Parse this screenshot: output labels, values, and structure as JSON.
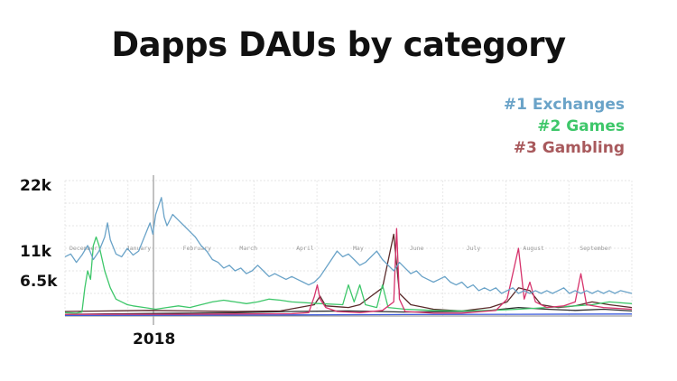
{
  "chart_data": {
    "type": "line",
    "title": "Dapps DAUs by category",
    "legend_position": "top-right",
    "grid": true,
    "y_tick_labels": [
      "22k",
      "11k",
      "6.5k"
    ],
    "x_marker_label": "2018",
    "month_labels": [
      "December",
      "January",
      "February",
      "March",
      "April",
      "May",
      "June",
      "July",
      "August",
      "September"
    ],
    "ylim": [
      0,
      24000
    ],
    "series": [
      {
        "name": "#1 Exchanges",
        "color": "#6aa3c8",
        "points": [
          [
            0.0,
            10500
          ],
          [
            0.01,
            11000
          ],
          [
            0.02,
            9500
          ],
          [
            0.03,
            10800
          ],
          [
            0.04,
            12500
          ],
          [
            0.05,
            10000
          ],
          [
            0.06,
            11500
          ],
          [
            0.07,
            14000
          ],
          [
            0.075,
            16500
          ],
          [
            0.08,
            13500
          ],
          [
            0.09,
            11000
          ],
          [
            0.1,
            10500
          ],
          [
            0.11,
            12000
          ],
          [
            0.12,
            10800
          ],
          [
            0.13,
            11500
          ],
          [
            0.14,
            14000
          ],
          [
            0.15,
            16500
          ],
          [
            0.155,
            14500
          ],
          [
            0.16,
            18000
          ],
          [
            0.17,
            21000
          ],
          [
            0.175,
            17500
          ],
          [
            0.18,
            16000
          ],
          [
            0.19,
            18000
          ],
          [
            0.2,
            17000
          ],
          [
            0.21,
            16000
          ],
          [
            0.22,
            15000
          ],
          [
            0.23,
            14000
          ],
          [
            0.24,
            12500
          ],
          [
            0.25,
            11500
          ],
          [
            0.26,
            10000
          ],
          [
            0.27,
            9500
          ],
          [
            0.28,
            8500
          ],
          [
            0.29,
            9000
          ],
          [
            0.3,
            8000
          ],
          [
            0.31,
            8500
          ],
          [
            0.32,
            7500
          ],
          [
            0.33,
            8000
          ],
          [
            0.34,
            9000
          ],
          [
            0.35,
            8000
          ],
          [
            0.36,
            7000
          ],
          [
            0.37,
            7500
          ],
          [
            0.38,
            7000
          ],
          [
            0.39,
            6500
          ],
          [
            0.4,
            7000
          ],
          [
            0.41,
            6500
          ],
          [
            0.42,
            6000
          ],
          [
            0.43,
            5500
          ],
          [
            0.44,
            6000
          ],
          [
            0.45,
            7000
          ],
          [
            0.46,
            8500
          ],
          [
            0.47,
            10000
          ],
          [
            0.48,
            11500
          ],
          [
            0.49,
            10500
          ],
          [
            0.5,
            11000
          ],
          [
            0.51,
            10000
          ],
          [
            0.52,
            9000
          ],
          [
            0.53,
            9500
          ],
          [
            0.54,
            10500
          ],
          [
            0.55,
            11500
          ],
          [
            0.56,
            10000
          ],
          [
            0.57,
            9000
          ],
          [
            0.58,
            8000
          ],
          [
            0.59,
            9500
          ],
          [
            0.6,
            8500
          ],
          [
            0.61,
            7500
          ],
          [
            0.62,
            8000
          ],
          [
            0.63,
            7000
          ],
          [
            0.64,
            6500
          ],
          [
            0.65,
            6000
          ],
          [
            0.66,
            6500
          ],
          [
            0.67,
            7000
          ],
          [
            0.68,
            6000
          ],
          [
            0.69,
            5500
          ],
          [
            0.7,
            6000
          ],
          [
            0.71,
            5000
          ],
          [
            0.72,
            5500
          ],
          [
            0.73,
            4500
          ],
          [
            0.74,
            5000
          ],
          [
            0.75,
            4500
          ],
          [
            0.76,
            5000
          ],
          [
            0.77,
            4000
          ],
          [
            0.78,
            4500
          ],
          [
            0.79,
            5000
          ],
          [
            0.8,
            4000
          ],
          [
            0.81,
            4500
          ],
          [
            0.82,
            4000
          ],
          [
            0.83,
            4500
          ],
          [
            0.84,
            4000
          ],
          [
            0.85,
            4500
          ],
          [
            0.86,
            4000
          ],
          [
            0.87,
            4500
          ],
          [
            0.88,
            5000
          ],
          [
            0.89,
            4000
          ],
          [
            0.9,
            4500
          ],
          [
            0.91,
            4000
          ],
          [
            0.92,
            4500
          ],
          [
            0.93,
            4000
          ],
          [
            0.94,
            4500
          ],
          [
            0.95,
            4000
          ],
          [
            0.96,
            4500
          ],
          [
            0.97,
            4000
          ],
          [
            0.98,
            4500
          ],
          [
            1.0,
            4000
          ]
        ]
      },
      {
        "name": "#2 Games",
        "color": "#3ec76a",
        "points": [
          [
            0.0,
            600
          ],
          [
            0.02,
            500
          ],
          [
            0.03,
            700
          ],
          [
            0.035,
            5000
          ],
          [
            0.04,
            8000
          ],
          [
            0.045,
            6500
          ],
          [
            0.05,
            12500
          ],
          [
            0.055,
            14000
          ],
          [
            0.06,
            12500
          ],
          [
            0.07,
            8000
          ],
          [
            0.08,
            5000
          ],
          [
            0.09,
            3000
          ],
          [
            0.1,
            2500
          ],
          [
            0.11,
            2000
          ],
          [
            0.12,
            1800
          ],
          [
            0.14,
            1500
          ],
          [
            0.16,
            1200
          ],
          [
            0.18,
            1500
          ],
          [
            0.2,
            1800
          ],
          [
            0.22,
            1500
          ],
          [
            0.24,
            2000
          ],
          [
            0.26,
            2500
          ],
          [
            0.28,
            2800
          ],
          [
            0.3,
            2500
          ],
          [
            0.32,
            2200
          ],
          [
            0.34,
            2500
          ],
          [
            0.36,
            3000
          ],
          [
            0.38,
            2800
          ],
          [
            0.4,
            2500
          ],
          [
            0.45,
            2200
          ],
          [
            0.49,
            2000
          ],
          [
            0.5,
            5500
          ],
          [
            0.51,
            2500
          ],
          [
            0.52,
            5500
          ],
          [
            0.53,
            2000
          ],
          [
            0.55,
            1500
          ],
          [
            0.56,
            5500
          ],
          [
            0.57,
            1500
          ],
          [
            0.6,
            1200
          ],
          [
            0.65,
            1000
          ],
          [
            0.7,
            900
          ],
          [
            0.75,
            1000
          ],
          [
            0.8,
            1200
          ],
          [
            0.85,
            1500
          ],
          [
            0.9,
            1800
          ],
          [
            0.93,
            2000
          ],
          [
            0.96,
            2500
          ],
          [
            1.0,
            2200
          ]
        ]
      },
      {
        "name": "#3 Gambling",
        "color": "#d6336c",
        "points": [
          [
            0.0,
            300
          ],
          [
            0.2,
            300
          ],
          [
            0.4,
            400
          ],
          [
            0.43,
            600
          ],
          [
            0.44,
            3500
          ],
          [
            0.445,
            5500
          ],
          [
            0.45,
            3000
          ],
          [
            0.46,
            1500
          ],
          [
            0.48,
            800
          ],
          [
            0.52,
            600
          ],
          [
            0.56,
            1000
          ],
          [
            0.58,
            2500
          ],
          [
            0.585,
            15500
          ],
          [
            0.59,
            3000
          ],
          [
            0.6,
            800
          ],
          [
            0.65,
            500
          ],
          [
            0.7,
            500
          ],
          [
            0.76,
            1000
          ],
          [
            0.78,
            3000
          ],
          [
            0.8,
            12000
          ],
          [
            0.81,
            3000
          ],
          [
            0.82,
            6000
          ],
          [
            0.83,
            2500
          ],
          [
            0.85,
            1500
          ],
          [
            0.88,
            1800
          ],
          [
            0.9,
            2500
          ],
          [
            0.91,
            7500
          ],
          [
            0.92,
            2000
          ],
          [
            0.95,
            1500
          ],
          [
            1.0,
            1200
          ]
        ]
      },
      {
        "name": "",
        "color": "#5a2a2a",
        "points": [
          [
            0.0,
            800
          ],
          [
            0.08,
            900
          ],
          [
            0.15,
            1000
          ],
          [
            0.22,
            900
          ],
          [
            0.3,
            800
          ],
          [
            0.38,
            900
          ],
          [
            0.44,
            2000
          ],
          [
            0.45,
            3500
          ],
          [
            0.46,
            1800
          ],
          [
            0.5,
            1500
          ],
          [
            0.52,
            2000
          ],
          [
            0.54,
            3500
          ],
          [
            0.56,
            5000
          ],
          [
            0.58,
            14500
          ],
          [
            0.59,
            4000
          ],
          [
            0.61,
            2000
          ],
          [
            0.65,
            1200
          ],
          [
            0.7,
            900
          ],
          [
            0.75,
            1500
          ],
          [
            0.78,
            2500
          ],
          [
            0.8,
            5000
          ],
          [
            0.82,
            4500
          ],
          [
            0.84,
            2000
          ],
          [
            0.87,
            1500
          ],
          [
            0.9,
            1800
          ],
          [
            0.93,
            2500
          ],
          [
            0.96,
            2000
          ],
          [
            1.0,
            1500
          ]
        ]
      },
      {
        "name": "",
        "color": "#2d2d2d",
        "points": [
          [
            0.0,
            300
          ],
          [
            0.1,
            400
          ],
          [
            0.2,
            500
          ],
          [
            0.3,
            600
          ],
          [
            0.4,
            800
          ],
          [
            0.5,
            900
          ],
          [
            0.6,
            700
          ],
          [
            0.7,
            800
          ],
          [
            0.75,
            1000
          ],
          [
            0.8,
            1500
          ],
          [
            0.85,
            1200
          ],
          [
            0.9,
            1000
          ],
          [
            0.95,
            1200
          ],
          [
            1.0,
            900
          ]
        ]
      },
      {
        "name": "",
        "color": "#3b5bdb",
        "points": [
          [
            0.0,
            100
          ],
          [
            0.2,
            150
          ],
          [
            0.4,
            200
          ],
          [
            0.6,
            250
          ],
          [
            0.8,
            300
          ],
          [
            1.0,
            350
          ]
        ]
      }
    ],
    "legend": [
      {
        "label": "#1 Exchanges",
        "color": "#6aa3c8"
      },
      {
        "label": "#2 Games",
        "color": "#3ec76a"
      },
      {
        "label": "#3 Gambling",
        "color": "#a8595c"
      }
    ]
  }
}
